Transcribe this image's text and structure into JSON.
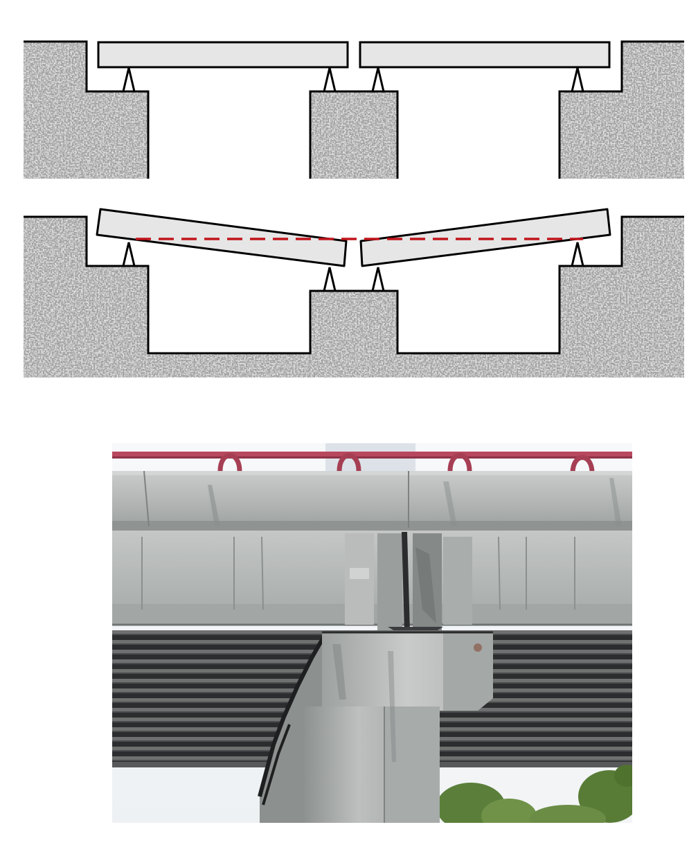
{
  "figure": {
    "top_diagram": {
      "state": "normal",
      "elements": [
        "ground-left",
        "pier-center",
        "ground-right",
        "girder-left",
        "girder-right",
        "bearings"
      ]
    },
    "bottom_diagram": {
      "state": "pier-settlement",
      "elements": [
        "ground-left",
        "pier-center-settled",
        "ground-right",
        "girder-left-tilted",
        "girder-right-tilted",
        "bearings",
        "reference-line"
      ]
    },
    "photo": {
      "subject": "bridge-pier-with-settled-girders"
    }
  },
  "colors": {
    "background": "#ffffff",
    "concrete_light": "#cfcfcf",
    "concrete_dark": "#7a7a7a",
    "girder_fill": "#e6e6e6",
    "outline": "#000000",
    "reference_line": "#c0151b",
    "photo_sky": "#f3f6f9",
    "photo_rail": "#b8485e",
    "photo_concrete": "#b9bcbb",
    "photo_underside": "#2f3031",
    "photo_foliage": "#5b7f3a"
  }
}
